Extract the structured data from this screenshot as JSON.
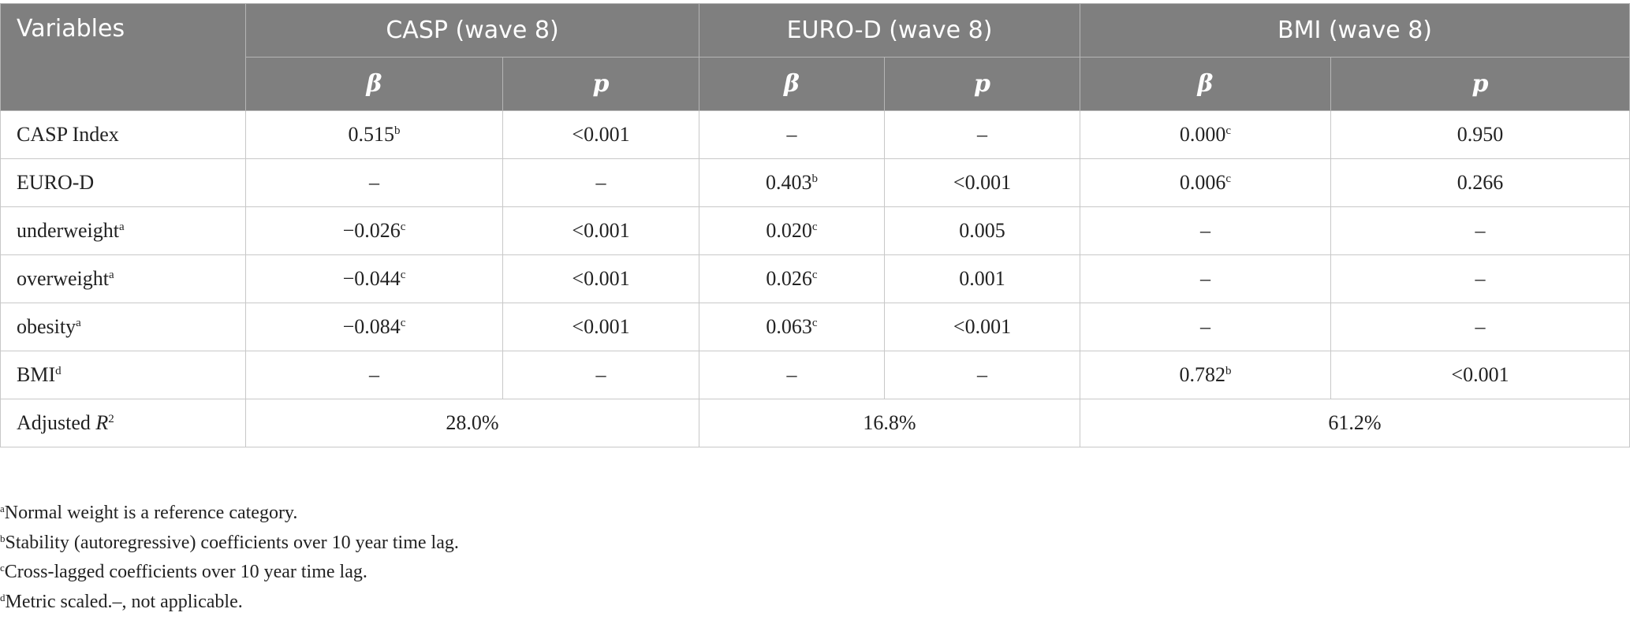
{
  "header": {
    "variables": "Variables",
    "groups": [
      "CASP (wave 8)",
      "EURO-D (wave 8)",
      "BMI (wave 8)"
    ],
    "sub": [
      "β",
      "p",
      "β",
      "p",
      "β",
      "p"
    ]
  },
  "table": {
    "rows": [
      {
        "label": "CASP Index",
        "cells": [
          {
            "text": "0.515",
            "sup": "b"
          },
          {
            "text": "<0.001"
          },
          {
            "text": "–"
          },
          {
            "text": "–"
          },
          {
            "text": "0.000",
            "sup": "c"
          },
          {
            "text": "0.950"
          }
        ]
      },
      {
        "label": "EURO-D",
        "cells": [
          {
            "text": "–"
          },
          {
            "text": "–"
          },
          {
            "text": "0.403",
            "sup": "b"
          },
          {
            "text": "<0.001"
          },
          {
            "text": "0.006",
            "sup": "c"
          },
          {
            "text": "0.266"
          }
        ]
      },
      {
        "label": "underweight",
        "label_sup": "a",
        "cells": [
          {
            "text": "−0.026",
            "sup": "c"
          },
          {
            "text": "<0.001"
          },
          {
            "text": "0.020",
            "sup": "c"
          },
          {
            "text": "0.005"
          },
          {
            "text": "–"
          },
          {
            "text": "–"
          }
        ]
      },
      {
        "label": "overweight",
        "label_sup": "a",
        "cells": [
          {
            "text": "−0.044",
            "sup": "c"
          },
          {
            "text": "<0.001"
          },
          {
            "text": "0.026",
            "sup": "c"
          },
          {
            "text": "0.001"
          },
          {
            "text": "–"
          },
          {
            "text": "–"
          }
        ]
      },
      {
        "label": "obesity",
        "label_sup": "a",
        "cells": [
          {
            "text": "−0.084",
            "sup": "c"
          },
          {
            "text": "<0.001"
          },
          {
            "text": "0.063",
            "sup": "c"
          },
          {
            "text": "<0.001"
          },
          {
            "text": "–"
          },
          {
            "text": "–"
          }
        ]
      },
      {
        "label": "BMI",
        "label_sup": "d",
        "cells": [
          {
            "text": "–"
          },
          {
            "text": "–"
          },
          {
            "text": "–"
          },
          {
            "text": "–"
          },
          {
            "text": "0.782",
            "sup": "b"
          },
          {
            "text": "<0.001"
          }
        ]
      }
    ],
    "r2": {
      "label": "Adjusted",
      "italic": "R",
      "sup": "2",
      "values": [
        "28.0%",
        "16.8%",
        "61.2%"
      ]
    }
  },
  "footnotes": [
    {
      "mark": "a",
      "text": "Normal weight is a reference category."
    },
    {
      "mark": "b",
      "text": "Stability (autoregressive) coefficients over 10 year time lag."
    },
    {
      "mark": "c",
      "text": "Cross-lagged coefficients over 10 year time lag."
    },
    {
      "mark": "d",
      "text": "Metric scaled.–, not applicable."
    }
  ]
}
